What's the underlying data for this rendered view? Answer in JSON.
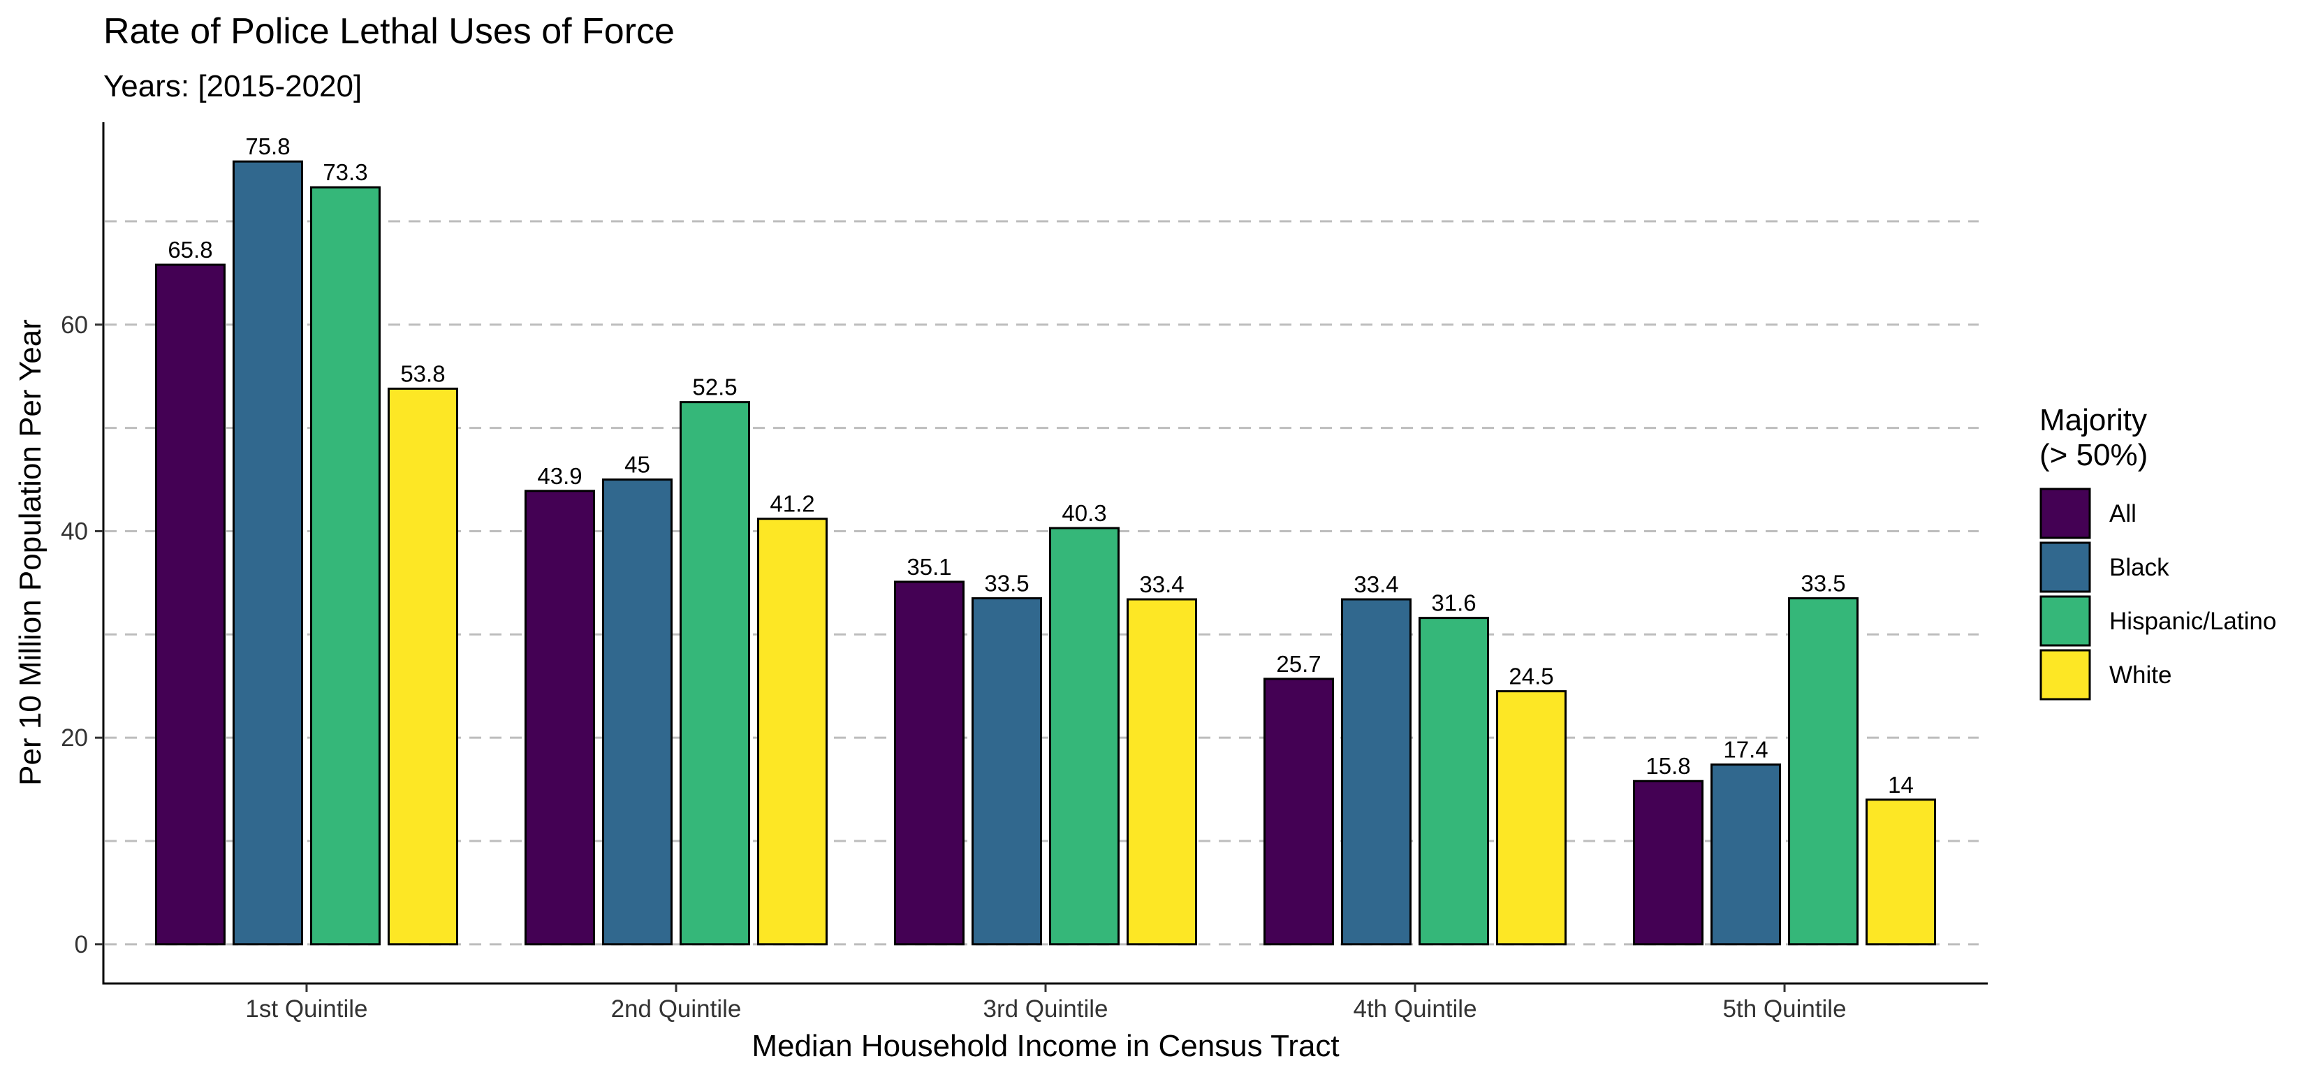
{
  "chart_data": {
    "type": "bar",
    "title": "Rate of Police Lethal Uses of Force",
    "subtitle": "Years: [2015-2020]",
    "xlabel": "Median Household Income in Census Tract",
    "ylabel": "Per 10 Million Population Per Year",
    "categories": [
      "1st Quintile",
      "2nd Quintile",
      "3rd Quintile",
      "4th Quintile",
      "5th Quintile"
    ],
    "series": [
      {
        "name": "All",
        "color": "#440154",
        "values": [
          65.8,
          43.9,
          35.1,
          25.7,
          15.8
        ]
      },
      {
        "name": "Black",
        "color": "#31688E",
        "values": [
          75.8,
          45,
          33.5,
          33.4,
          17.4
        ]
      },
      {
        "name": "Hispanic/Latino",
        "color": "#35B779",
        "values": [
          73.3,
          52.5,
          40.3,
          31.6,
          33.5
        ]
      },
      {
        "name": "White",
        "color": "#FDE725",
        "values": [
          53.8,
          41.2,
          33.4,
          24.5,
          14
        ]
      }
    ],
    "data_labels": [
      [
        "65.8",
        "43.9",
        "35.1",
        "25.7",
        "15.8"
      ],
      [
        "75.8",
        "45",
        "33.5",
        "33.4",
        "17.4"
      ],
      [
        "73.3",
        "52.5",
        "40.3",
        "31.6",
        "33.5"
      ],
      [
        "53.8",
        "41.2",
        "33.4",
        "24.5",
        "14"
      ]
    ],
    "y_ticks": [
      "0",
      "20",
      "40",
      "60"
    ],
    "y_tick_values": [
      0,
      20,
      40,
      60
    ],
    "ylim": [
      -3.8,
      79.6
    ],
    "gridlines": [
      0,
      10,
      20,
      30,
      40,
      50,
      60,
      70
    ],
    "grid": "horizontal-dashed",
    "legend": {
      "title_line1": "Majority",
      "title_line2": "(> 50%)",
      "position": "right"
    }
  }
}
